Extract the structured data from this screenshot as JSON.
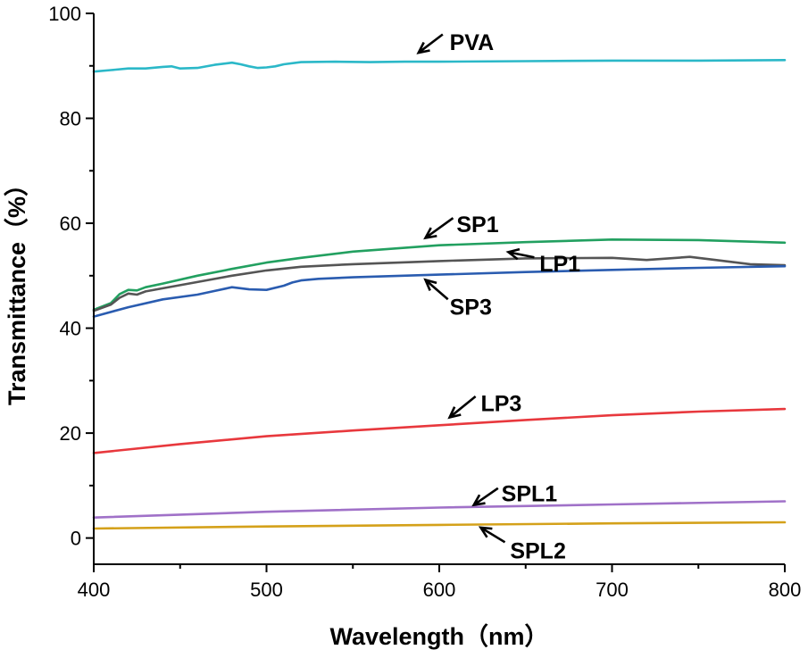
{
  "chart_data": {
    "type": "line",
    "title": "",
    "xlabel": "Wavelength（nm）",
    "ylabel": "Transmittance（%）",
    "xlim": [
      400,
      800
    ],
    "ylim": [
      -5,
      100
    ],
    "xticks": [
      400,
      500,
      600,
      700,
      800
    ],
    "yticks": [
      0,
      20,
      40,
      60,
      80,
      100
    ],
    "grid": false,
    "legend": "inline annotations",
    "series": [
      {
        "name": "PVA",
        "color": "#2BB8C8",
        "x": [
          400,
          410,
          420,
          430,
          440,
          445,
          450,
          460,
          470,
          480,
          485,
          490,
          495,
          500,
          505,
          510,
          520,
          540,
          560,
          580,
          600,
          650,
          700,
          750,
          800
        ],
        "y": [
          88.9,
          89.2,
          89.5,
          89.5,
          89.8,
          89.9,
          89.5,
          89.6,
          90.2,
          90.6,
          90.3,
          89.9,
          89.6,
          89.7,
          89.9,
          90.3,
          90.7,
          90.8,
          90.7,
          90.8,
          90.8,
          90.9,
          91.0,
          91.0,
          91.1
        ]
      },
      {
        "name": "SP1",
        "color": "#22A060",
        "x": [
          400,
          410,
          415,
          420,
          425,
          430,
          440,
          460,
          480,
          500,
          520,
          550,
          600,
          650,
          700,
          750,
          800
        ],
        "y": [
          43.5,
          44.8,
          46.5,
          47.3,
          47.2,
          47.8,
          48.5,
          50.0,
          51.3,
          52.5,
          53.4,
          54.6,
          55.8,
          56.4,
          56.9,
          56.8,
          56.3
        ]
      },
      {
        "name": "LP1",
        "color": "#555555",
        "x": [
          400,
          410,
          415,
          420,
          425,
          430,
          440,
          460,
          480,
          500,
          520,
          550,
          600,
          650,
          700,
          720,
          745,
          760,
          780,
          800
        ],
        "y": [
          43.3,
          44.5,
          45.8,
          46.6,
          46.4,
          47.0,
          47.6,
          48.8,
          50.0,
          51.0,
          51.7,
          52.2,
          52.8,
          53.3,
          53.4,
          53.0,
          53.6,
          53.0,
          52.2,
          52.0
        ]
      },
      {
        "name": "SP3",
        "color": "#2A5CB0",
        "x": [
          400,
          420,
          440,
          460,
          470,
          480,
          490,
          500,
          510,
          515,
          520,
          530,
          550,
          600,
          650,
          700,
          750,
          800
        ],
        "y": [
          42.2,
          44.0,
          45.5,
          46.4,
          47.1,
          47.8,
          47.4,
          47.3,
          48.1,
          48.7,
          49.1,
          49.4,
          49.7,
          50.2,
          50.7,
          51.1,
          51.5,
          51.8
        ]
      },
      {
        "name": "LP3",
        "color": "#E8383D",
        "x": [
          400,
          450,
          500,
          550,
          600,
          650,
          700,
          750,
          800
        ],
        "y": [
          16.2,
          17.9,
          19.4,
          20.5,
          21.5,
          22.5,
          23.4,
          24.1,
          24.6
        ]
      },
      {
        "name": "SPL1",
        "color": "#A071C8",
        "x": [
          400,
          500,
          600,
          700,
          800
        ],
        "y": [
          3.9,
          5.0,
          5.8,
          6.4,
          7.0
        ]
      },
      {
        "name": "SPL2",
        "color": "#D4A11A",
        "x": [
          400,
          500,
          600,
          700,
          800
        ],
        "y": [
          1.8,
          2.2,
          2.5,
          2.8,
          3.0
        ]
      }
    ],
    "annotations": [
      {
        "label": "PVA",
        "tail": [
          602,
          96.0
        ],
        "head": [
          588,
          92.5
        ],
        "text": [
          606,
          93.0
        ]
      },
      {
        "label": "SP1",
        "tail": [
          608,
          61.0
        ],
        "head": [
          592,
          57.2
        ],
        "text": [
          610,
          58.3
        ]
      },
      {
        "label": "LP1",
        "tail": [
          655,
          53.5
        ],
        "head": [
          640,
          54.5
        ],
        "text": [
          658,
          50.8
        ]
      },
      {
        "label": "SP3",
        "tail": [
          605,
          45.5
        ],
        "head": [
          592,
          49.2
        ],
        "text": [
          606,
          42.6
        ]
      },
      {
        "label": "LP3",
        "tail": [
          621,
          27.0
        ],
        "head": [
          606,
          23.0
        ],
        "text": [
          624,
          24.2
        ]
      },
      {
        "label": "SPL1",
        "tail": [
          634,
          9.5
        ],
        "head": [
          620,
          6.3
        ],
        "text": [
          636,
          7.0
        ]
      },
      {
        "label": "SPL2",
        "tail": [
          638,
          -0.8
        ],
        "head": [
          624,
          2.0
        ],
        "text": [
          641,
          -3.9
        ]
      }
    ]
  }
}
